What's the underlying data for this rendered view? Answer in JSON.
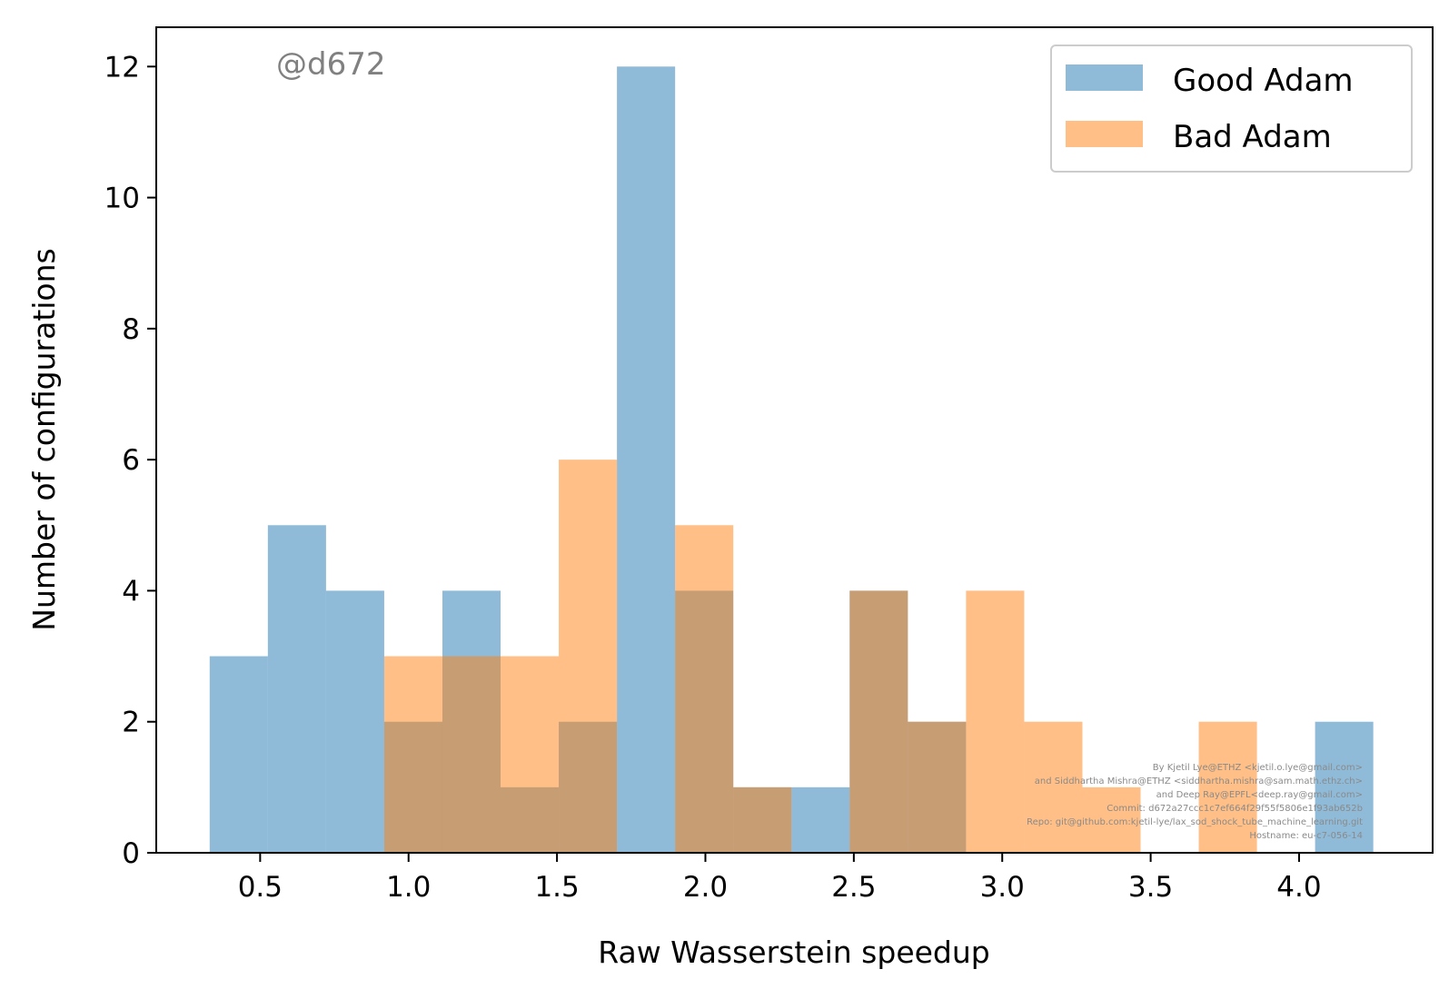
{
  "chart_data": {
    "type": "histogram",
    "title": "",
    "xlabel": "Raw Wasserstein speedup",
    "ylabel": "Number of configurations",
    "xlim": [
      0.15,
      4.45
    ],
    "ylim": [
      0,
      12.6
    ],
    "xticks": [
      "0.5",
      "1.0",
      "1.5",
      "2.0",
      "2.5",
      "3.0",
      "3.5",
      "4.0"
    ],
    "yticks": [
      "0",
      "2",
      "4",
      "6",
      "8",
      "10",
      "12"
    ],
    "grid": false,
    "legend_position": "top-right",
    "bin_start": 0.33,
    "bin_width": 0.196,
    "series": [
      {
        "name": "Good Adam",
        "color": "#1f77b4",
        "alpha": 0.5,
        "values": [
          3,
          5,
          4,
          2,
          4,
          1,
          2,
          12,
          4,
          1,
          1,
          4,
          2,
          0,
          0,
          0,
          0,
          0,
          0,
          2
        ]
      },
      {
        "name": "Bad Adam",
        "color": "#ff7f0e",
        "alpha": 0.5,
        "values": [
          0,
          0,
          0,
          3,
          3,
          3,
          6,
          0,
          5,
          1,
          0,
          4,
          2,
          4,
          2,
          1,
          0,
          2,
          0,
          0
        ]
      }
    ]
  },
  "stamp": "@d672",
  "credits": [
    "By Kjetil Lye@ETHZ <kjetil.o.lye@gmail.com>",
    "and Siddhartha Mishra@ETHZ <siddhartha.mishra@sam.math.ethz.ch>",
    "and Deep Ray@EPFL<deep.ray@gmail.com>",
    "Commit: d672a27ccc1c7ef664f29f55f5806e1f93ab652b",
    "Repo: git@github.com:kjetil-lye/lax_sod_shock_tube_machine_learning.git",
    "Hostname: eu-c7-056-14"
  ]
}
